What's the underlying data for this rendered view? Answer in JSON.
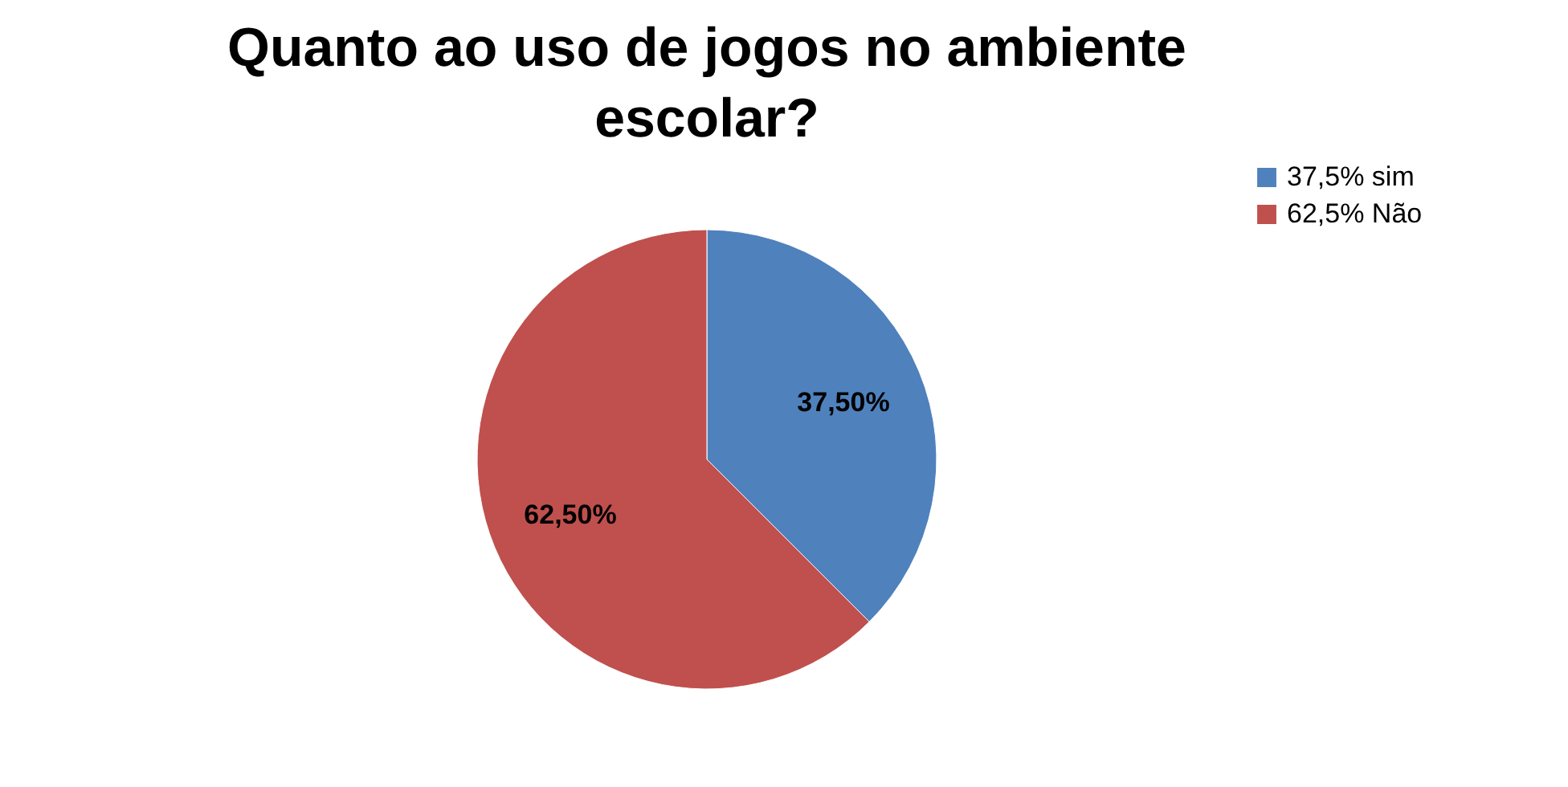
{
  "chart_data": {
    "type": "pie",
    "title": "Quanto ao uso de jogos no ambiente escolar?",
    "categories": [
      "37,5% sim",
      "62,5% Não"
    ],
    "values": [
      37.5,
      62.5
    ],
    "colors": [
      "#4f81bd",
      "#c0504d"
    ],
    "value_labels": [
      "37,50%",
      "62,50%"
    ],
    "legend": "right"
  }
}
